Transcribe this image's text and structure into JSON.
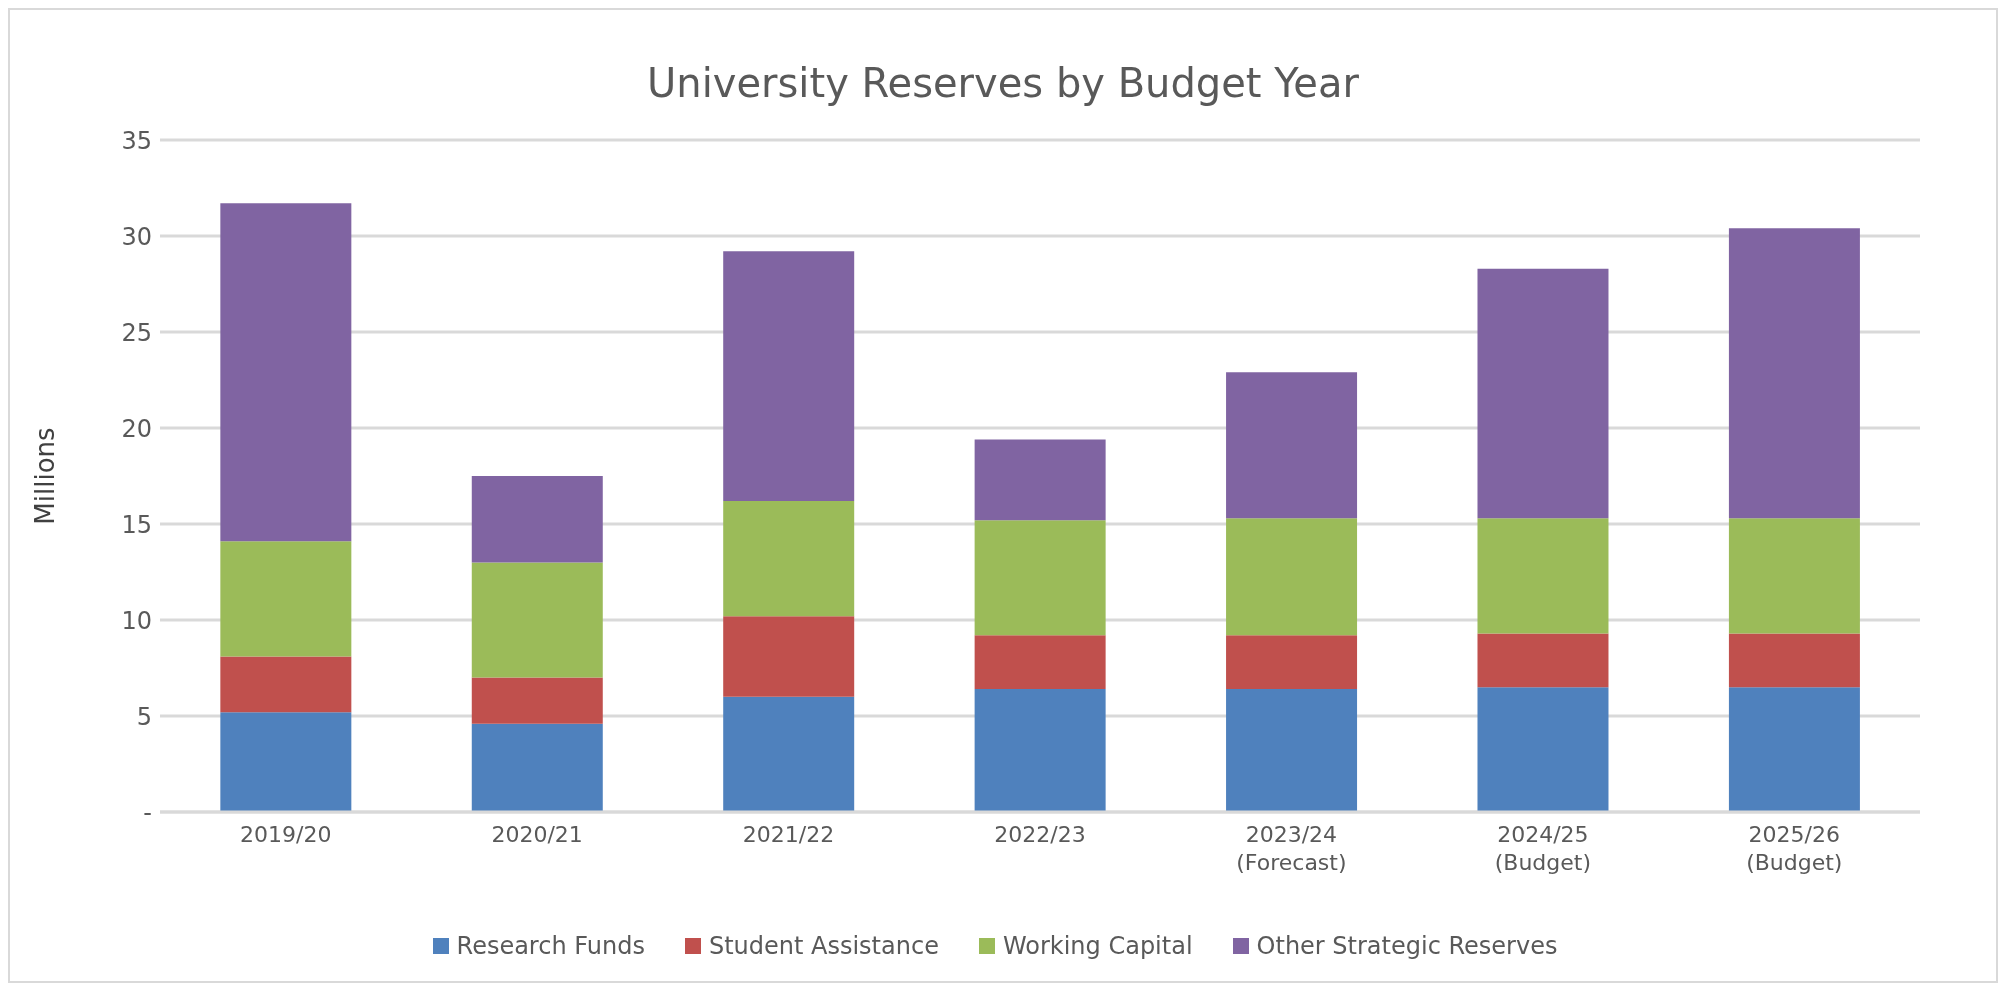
{
  "chart_data": {
    "type": "bar",
    "title": "University Reserves by Budget Year",
    "ylabel": "Millions",
    "categories": [
      "2019/20",
      "2020/21",
      "2021/22",
      "2022/23",
      "2023/24\n(Forecast)",
      "2024/25\n(Budget)",
      "2025/26\n(Budget)"
    ],
    "stacked": true,
    "series": [
      {
        "name": "Research Funds",
        "color": "#4f81bd",
        "values": [
          5.2,
          4.6,
          6.0,
          6.4,
          6.4,
          6.5,
          6.5
        ]
      },
      {
        "name": "Student Assistance",
        "color": "#c0504d",
        "values": [
          2.9,
          2.4,
          4.2,
          2.8,
          2.8,
          2.8,
          2.8
        ]
      },
      {
        "name": "Working Capital",
        "color": "#9bbb59",
        "values": [
          6.0,
          6.0,
          6.0,
          6.0,
          6.1,
          6.0,
          6.0
        ]
      },
      {
        "name": "Other Strategic Reserves",
        "color": "#8064a2",
        "values": [
          17.6,
          4.5,
          13.0,
          4.2,
          7.6,
          13.0,
          15.1
        ]
      }
    ],
    "ylim": [
      0,
      35
    ],
    "yticks": [
      {
        "value": 0,
        "label": "-"
      },
      5,
      10,
      15,
      20,
      25,
      30,
      35
    ],
    "grid": "y",
    "legend": "bottom"
  }
}
